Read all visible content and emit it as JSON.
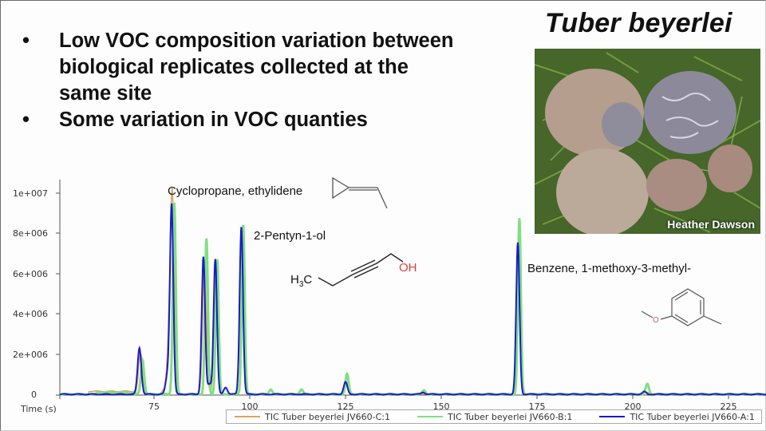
{
  "slide": {
    "bullets": [
      {
        "symbol": "•",
        "text": "Low VOC composition variation between biological replicates collected at the same site"
      },
      {
        "symbol": "•",
        "text": "Some variation in VOC quanties"
      }
    ],
    "species_title": "Tuber beyerlei",
    "photo": {
      "description": "truffles-on-moss-photo",
      "credit": "Heather Dawson"
    }
  },
  "annotations": {
    "peak1": {
      "label": "Cyclopropane, ethylidene",
      "structure": "cyclopropane-ethylidene-structure"
    },
    "peak2": {
      "label": "2-Pentyn-1-ol",
      "structure": "2-pentyn-1-ol-structure",
      "h3c": "H3C",
      "oh": "OH"
    },
    "peak3": {
      "label": "Benzene, 1-methoxy-3-methyl-",
      "structure": "3-methylanisole-structure"
    }
  },
  "chart_data": {
    "type": "line",
    "title": "",
    "xlabel": "Time (s)",
    "ylabel": "",
    "xlim": [
      50,
      235
    ],
    "ylim": [
      0,
      10600000
    ],
    "x_ticks": [
      75,
      100,
      125,
      150,
      175,
      200,
      225
    ],
    "y_ticks": [
      0,
      2000000,
      4000000,
      6000000,
      8000000,
      10000000
    ],
    "y_tick_labels": [
      "0",
      "2e+006",
      "4e+006",
      "6e+006",
      "8e+006",
      "1e+007"
    ],
    "x_tick_labels": [
      "75",
      "100",
      "125",
      "150",
      "175",
      "200",
      "225"
    ],
    "grid": false,
    "legend_position": "bottom",
    "series": [
      {
        "name": "TIC Tuber beyerlei JV660-C:1",
        "color": "#e0a060",
        "peaks": [
          {
            "x": 71.5,
            "y": 2000000
          },
          {
            "x": 77.5,
            "y": 200000
          },
          {
            "x": 79.0,
            "y": 2800000
          },
          {
            "x": 79.8,
            "y": 9200000
          },
          {
            "x": 88.2,
            "y": 6600000
          },
          {
            "x": 91.2,
            "y": 6500000
          },
          {
            "x": 98.0,
            "y": 8000000
          },
          {
            "x": 113.5,
            "y": 250000
          },
          {
            "x": 125.3,
            "y": 600000
          },
          {
            "x": 170.3,
            "y": 7300000
          },
          {
            "x": 203.5,
            "y": 100000
          }
        ]
      },
      {
        "name": "TIC Tuber beyerlei JV660-B:1",
        "color": "#7fe07f",
        "peaks": [
          {
            "x": 72.0,
            "y": 1700000
          },
          {
            "x": 80.3,
            "y": 9500000
          },
          {
            "x": 88.7,
            "y": 7700000
          },
          {
            "x": 91.5,
            "y": 6700000
          },
          {
            "x": 98.3,
            "y": 8400000
          },
          {
            "x": 105.5,
            "y": 250000
          },
          {
            "x": 113.5,
            "y": 250000
          },
          {
            "x": 125.4,
            "y": 1000000
          },
          {
            "x": 145.5,
            "y": 200000
          },
          {
            "x": 170.4,
            "y": 8700000
          },
          {
            "x": 203.8,
            "y": 500000
          }
        ]
      },
      {
        "name": "TIC Tuber beyerlei JV660-A:1",
        "color": "#1a1acc",
        "peaks": [
          {
            "x": 71.2,
            "y": 2300000
          },
          {
            "x": 78.5,
            "y": 900000
          },
          {
            "x": 79.6,
            "y": 9400000
          },
          {
            "x": 87.9,
            "y": 6800000
          },
          {
            "x": 89.5,
            "y": 500000
          },
          {
            "x": 91.0,
            "y": 6700000
          },
          {
            "x": 93.7,
            "y": 350000
          },
          {
            "x": 97.8,
            "y": 8300000
          },
          {
            "x": 125.0,
            "y": 600000
          },
          {
            "x": 145.3,
            "y": 100000
          },
          {
            "x": 170.0,
            "y": 7500000
          },
          {
            "x": 203.0,
            "y": 120000
          }
        ]
      }
    ]
  }
}
